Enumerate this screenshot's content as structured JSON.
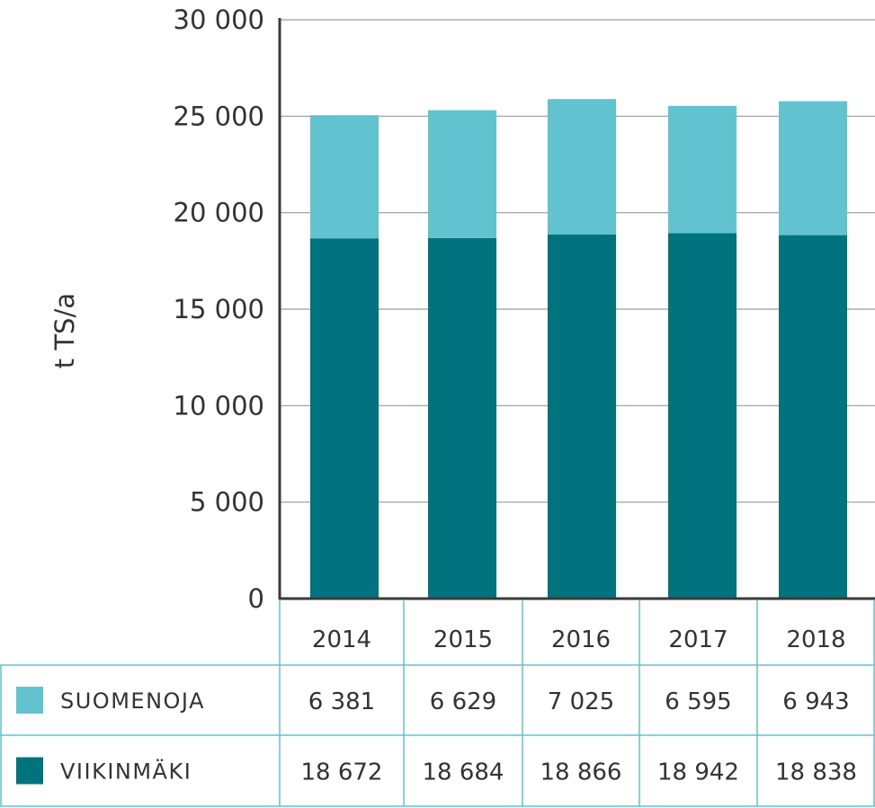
{
  "chart_data": {
    "type": "bar",
    "stacked": true,
    "categories": [
      "2014",
      "2015",
      "2016",
      "2017",
      "2018"
    ],
    "series": [
      {
        "name": "VIIKINMÄKI",
        "values": [
          18672,
          18684,
          18866,
          18942,
          18838
        ],
        "color": "#00737f",
        "labels": [
          "18 672",
          "18 684",
          "18 866",
          "18 942",
          "18 838"
        ]
      },
      {
        "name": "SUOMENOJA",
        "values": [
          6381,
          6629,
          7025,
          6595,
          6943
        ],
        "color": "#61c3cf",
        "labels": [
          "6 381",
          "6 629",
          "7 025",
          "6 595",
          "6 943"
        ]
      }
    ],
    "ylabel": "t TS/a",
    "ylim": [
      0,
      30000
    ],
    "yticks": [
      0,
      5000,
      10000,
      15000,
      20000,
      25000,
      30000
    ],
    "ytick_labels": [
      "0",
      "5 000",
      "10 000",
      "15 000",
      "20 000",
      "25 000",
      "30 000"
    ],
    "grid": "horizontal",
    "legend": "data-table"
  },
  "colors": {
    "grid": "#9a9a9a",
    "axis": "#3a3a3a",
    "table_border": "#61c3cf"
  }
}
